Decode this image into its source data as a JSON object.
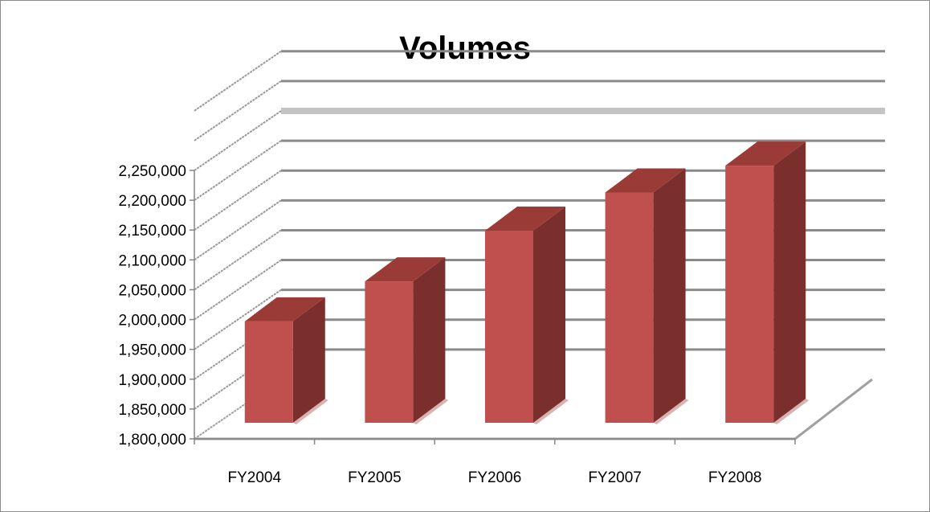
{
  "chart_data": {
    "type": "bar",
    "title": "Volumes",
    "categories": [
      "FY2004",
      "FY2005",
      "FY2006",
      "FY2007",
      "FY2008"
    ],
    "series": [
      {
        "values": [
          1970000,
          2037000,
          2122000,
          2186000,
          2231000
        ]
      }
    ],
    "ylim": [
      1800000,
      2250000
    ],
    "yticks": [
      "1,800,000",
      "1,850,000",
      "1,900,000",
      "1,950,000",
      "2,000,000",
      "2,050,000",
      "2,100,000",
      "2,150,000",
      "2,200,000",
      "2,250,000"
    ],
    "ytick_values": [
      1800000,
      1850000,
      1900000,
      1950000,
      2000000,
      2050000,
      2100000,
      2150000,
      2200000,
      2250000
    ],
    "xlabel": "",
    "ylabel": "",
    "grid": true,
    "legend": "none",
    "three_d": true,
    "colors": {
      "bar_front": "#c0504d",
      "bar_side": "#7b2f2d",
      "bar_top": "#9a3b38",
      "grid": "#888888"
    }
  }
}
